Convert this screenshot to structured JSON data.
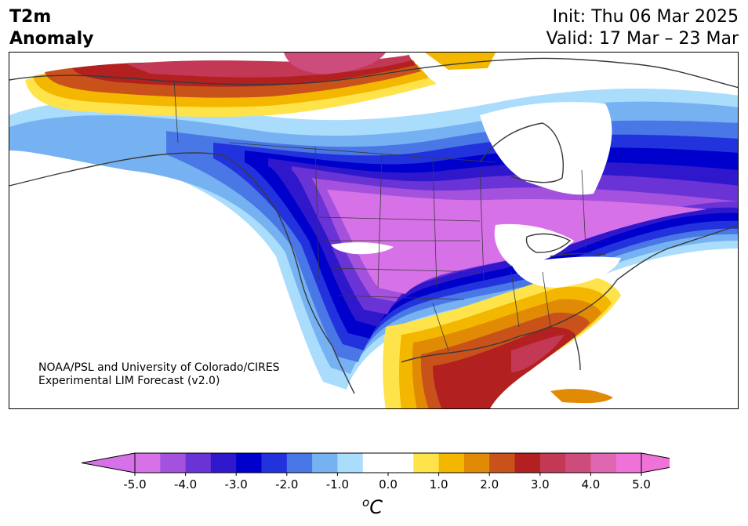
{
  "title": {
    "line1": "T2m",
    "line2": "Anomaly"
  },
  "init": "Init: Thu 06 Mar 2025",
  "valid": "Valid: 17 Mar – 23 Mar",
  "credit": {
    "line1": "NOAA/PSL and University of Colorado/CIRES",
    "line2": "Experimental LIM Forecast (v2.0)"
  },
  "colorbar": {
    "unit_super": "o",
    "unit": "C",
    "ticks": [
      "-5.0",
      "-4.0",
      "-3.0",
      "-2.0",
      "-1.0",
      "0.0",
      "1.0",
      "2.0",
      "3.0",
      "4.0",
      "5.0"
    ],
    "colors": [
      "#d771e8",
      "#a451dd",
      "#6a33d6",
      "#2f17cc",
      "#0000cc",
      "#2233dd",
      "#4a77e6",
      "#76b2f2",
      "#aadcfc",
      "#ffffff",
      "#ffffff",
      "#ffe34b",
      "#f4b700",
      "#e08a06",
      "#c9521a",
      "#b22020",
      "#c23855",
      "#cd4c7b",
      "#df66b0",
      "#ee72d8"
    ],
    "under_color": "#d771e8",
    "over_color": "#ee72d8"
  }
}
